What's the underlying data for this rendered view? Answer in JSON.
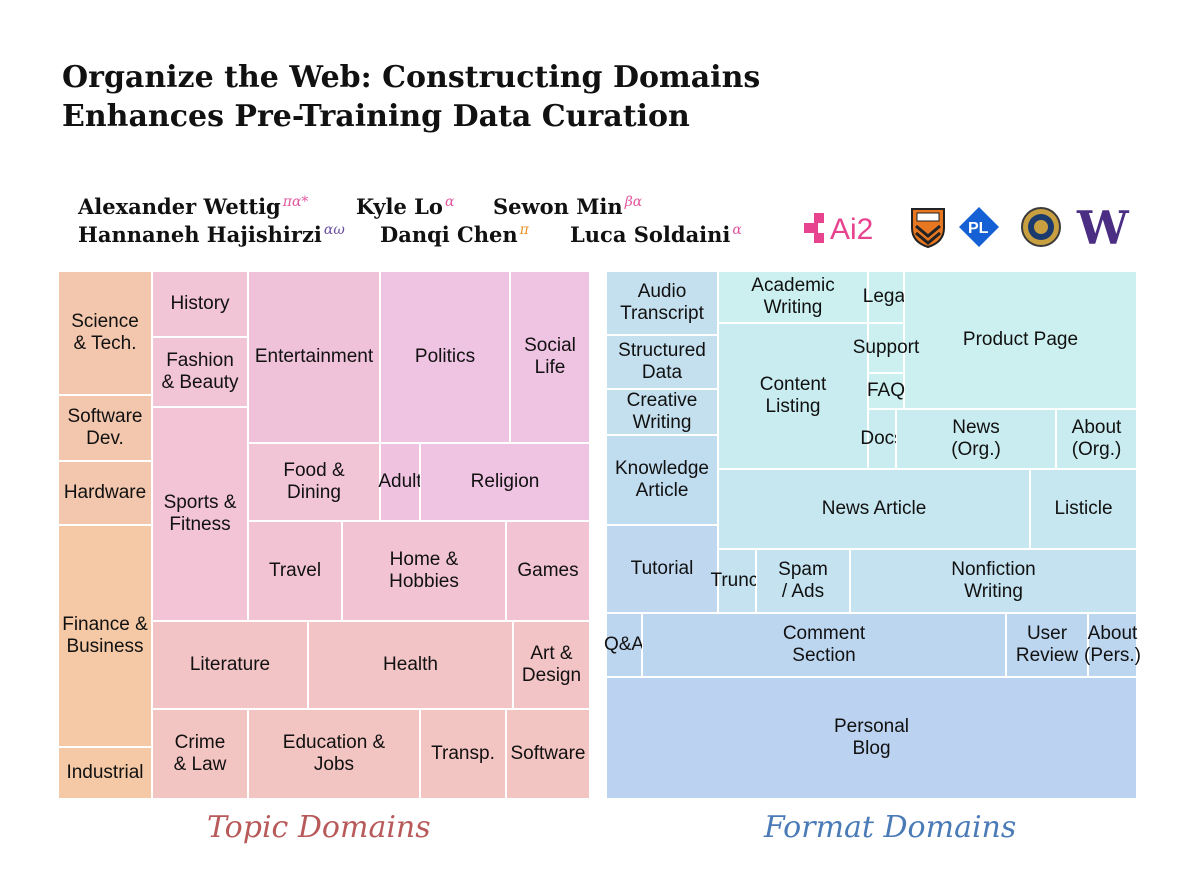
{
  "title": {
    "line1": "Organize the Web: Constructing Domains",
    "line2": "Enhances Pre-Training Data Curation"
  },
  "authors": [
    {
      "name": "Alexander Wettig",
      "affil": "πα*"
    },
    {
      "name": "Kyle Lo",
      "affil": "α"
    },
    {
      "name": "Sewon Min",
      "affil": "βα"
    },
    {
      "name": "Hannaneh Hajishirzi",
      "affil": "αω"
    },
    {
      "name": "Danqi Chen",
      "affil": "π"
    },
    {
      "name": "Luca Soldaini",
      "affil": "α"
    }
  ],
  "affil_colors": {
    "pi": "#e8922a",
    "alpha": "#e0569e",
    "beta": "#e8922a",
    "omega": "#3b3f8f"
  },
  "logos": [
    {
      "name": "ai2-logo",
      "text": "Ai2",
      "color": "#e8438f"
    },
    {
      "name": "princeton-shield-logo",
      "color": "#e87722"
    },
    {
      "name": "pli-logo",
      "text": "PL",
      "color": "#1560d4"
    },
    {
      "name": "berkeley-seal-logo",
      "color": "#c8a040"
    },
    {
      "name": "uw-logo",
      "text": "W",
      "color": "#4b2e83"
    }
  ],
  "topic_domains": {
    "caption": "Topic Domains",
    "caption_color": "#b85a5a",
    "cells": [
      {
        "label": "Science\n& Tech.",
        "color": "#f3c7ad"
      },
      {
        "label": "Software\nDev.",
        "color": "#f3c7ad"
      },
      {
        "label": "Hardware",
        "color": "#f3c7ad"
      },
      {
        "label": "Finance &\nBusiness",
        "color": "#f5c9a5"
      },
      {
        "label": "Industrial",
        "color": "#f5c9a5"
      },
      {
        "label": "History",
        "color": "#f1c4d6"
      },
      {
        "label": "Fashion\n& Beauty",
        "color": "#f1c4d6"
      },
      {
        "label": "Sports &\nFitness",
        "color": "#f2c4d6"
      },
      {
        "label": "Entertainment",
        "color": "#f0c2da"
      },
      {
        "label": "Politics",
        "color": "#efc3e2"
      },
      {
        "label": "Social\nLife",
        "color": "#efc3e2"
      },
      {
        "label": "Food &\nDining",
        "color": "#f1c4d6"
      },
      {
        "label": "Adult",
        "color": "#efc3e0"
      },
      {
        "label": "Religion",
        "color": "#efc3e2"
      },
      {
        "label": "Travel",
        "color": "#f2c4d3"
      },
      {
        "label": "Home &\nHobbies",
        "color": "#f2c4d3"
      },
      {
        "label": "Games",
        "color": "#f2c4d3"
      },
      {
        "label": "Literature",
        "color": "#f2c4c6"
      },
      {
        "label": "Health",
        "color": "#f2c4c6"
      },
      {
        "label": "Art &\nDesign",
        "color": "#f2c4c6"
      },
      {
        "label": "Crime\n& Law",
        "color": "#f2c4c2"
      },
      {
        "label": "Education &\nJobs",
        "color": "#f2c4c2"
      },
      {
        "label": "Transp.",
        "color": "#f2c4c2"
      },
      {
        "label": "Software",
        "color": "#f2c4c2"
      }
    ]
  },
  "format_domains": {
    "caption": "Format Domains",
    "caption_color": "#4a7bb7",
    "cells": [
      {
        "label": "Audio\nTranscript",
        "color": "#c4e0ee"
      },
      {
        "label": "Structured\nData",
        "color": "#c4e0ee"
      },
      {
        "label": "Creative\nWriting",
        "color": "#c4e0ee"
      },
      {
        "label": "Knowledge\nArticle",
        "color": "#c0dcef"
      },
      {
        "label": "Tutorial",
        "color": "#bfd8f0"
      },
      {
        "label": "Academic\nWriting",
        "color": "#ccf0f0"
      },
      {
        "label": "Legal",
        "color": "#ccf0f0"
      },
      {
        "label": "Product Page",
        "color": "#ccf0f0"
      },
      {
        "label": "Content\nListing",
        "color": "#c9ecf0"
      },
      {
        "label": "Support",
        "color": "#ccf0f0"
      },
      {
        "label": "FAQ",
        "color": "#ccf0f0"
      },
      {
        "label": "Docs",
        "color": "#c9ecf0"
      },
      {
        "label": "News\n(Org.)",
        "color": "#c9ecf0"
      },
      {
        "label": "About\n(Org.)",
        "color": "#c9ecf0"
      },
      {
        "label": "News Article",
        "color": "#c6e6f0"
      },
      {
        "label": "Listicle",
        "color": "#c6e6f0"
      },
      {
        "label": "Trunc.",
        "color": "#c4e2f0"
      },
      {
        "label": "Spam\n/ Ads",
        "color": "#c4e2f0"
      },
      {
        "label": "Nonfiction\nWriting",
        "color": "#c4e2f0"
      },
      {
        "label": "Q&A",
        "color": "#bdd6f0"
      },
      {
        "label": "Comment\nSection",
        "color": "#bdd6f0"
      },
      {
        "label": "User\nReview",
        "color": "#bdd6f0"
      },
      {
        "label": "About\n(Pers.)",
        "color": "#bdd6f0"
      },
      {
        "label": "Personal\nBlog",
        "color": "#bbd2f0"
      }
    ]
  }
}
